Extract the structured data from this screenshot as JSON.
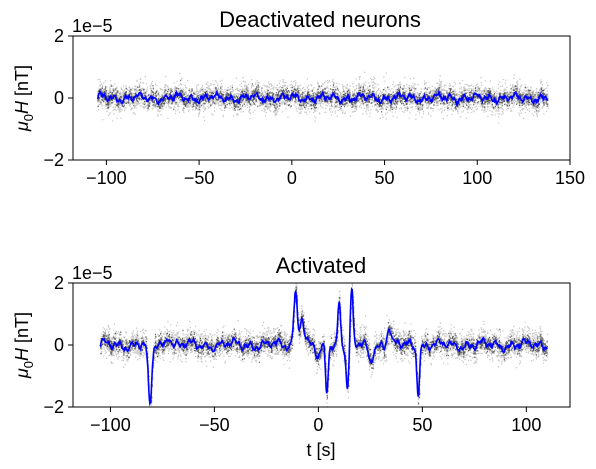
{
  "chart_data": [
    {
      "type": "scatter",
      "title": "Deactivated neurons",
      "xlabel": "",
      "ylabel": "μ0H [nT]",
      "y_offset_label": "1e−5",
      "xlim": [
        -118,
        150
      ],
      "ylim": [
        -2,
        2
      ],
      "xticks": [
        -100,
        -50,
        0,
        50,
        100,
        150
      ],
      "xtick_labels": [
        "−100",
        "−50",
        "0",
        "50",
        "100",
        "150"
      ],
      "yticks": [
        -2,
        0,
        2
      ],
      "ytick_labels": [
        "−2",
        "0",
        "2"
      ],
      "x_range": [
        -105,
        138
      ],
      "grid": false,
      "raw_points": {
        "color": "#000000",
        "noise_sigma": 0.22,
        "band": [
          -0.6,
          0.6
        ]
      },
      "smoothed_line": {
        "color": "#0000ff",
        "amplitude": 0.12
      },
      "spikes": []
    },
    {
      "type": "scatter",
      "title": "Activated",
      "xlabel": "t [s]",
      "ylabel": "μ0H [nT]",
      "y_offset_label": "1e−5",
      "xlim": [
        -118,
        121
      ],
      "ylim": [
        -2,
        2
      ],
      "xticks": [
        -100,
        -50,
        0,
        50,
        100
      ],
      "xtick_labels": [
        "−100",
        "−50",
        "0",
        "50",
        "100"
      ],
      "yticks": [
        -2,
        0,
        2
      ],
      "ytick_labels": [
        "−2",
        "0",
        "2"
      ],
      "x_range": [
        -105,
        110
      ],
      "grid": false,
      "raw_points": {
        "color": "#000000",
        "noise_sigma": 0.22,
        "band": [
          -0.6,
          0.6
        ]
      },
      "smoothed_line": {
        "color": "#0000ff",
        "amplitude": 0.15
      },
      "spikes": [
        {
          "t": -81,
          "amp": -2.0,
          "width": 1.2
        },
        {
          "t": -72,
          "amp": 0.35,
          "width": 1.5
        },
        {
          "t": -11,
          "amp": 1.7,
          "width": 1.2
        },
        {
          "t": -8,
          "amp": 0.9,
          "width": 1.5
        },
        {
          "t": 0,
          "amp": -0.5,
          "width": 1.5
        },
        {
          "t": 4,
          "amp": -1.5,
          "width": 0.9
        },
        {
          "t": 10,
          "amp": 1.5,
          "width": 0.9
        },
        {
          "t": 14,
          "amp": -1.5,
          "width": 0.9
        },
        {
          "t": 16,
          "amp": 1.7,
          "width": 0.9
        },
        {
          "t": 25,
          "amp": -0.5,
          "width": 1.5
        },
        {
          "t": 34,
          "amp": 0.6,
          "width": 1.2
        },
        {
          "t": 48,
          "amp": -1.5,
          "width": 0.9
        }
      ]
    }
  ]
}
